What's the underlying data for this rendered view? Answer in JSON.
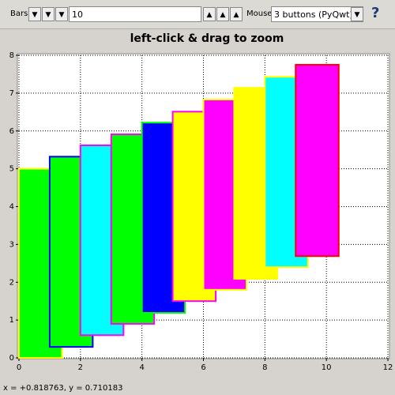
{
  "toolbar": {
    "bars_label": "Bars",
    "bars_value": "10",
    "mouse_label": "Mouse",
    "mouse_value": "3 buttons (PyQwt)",
    "help": "?"
  },
  "chart_data": {
    "type": "floating-bar",
    "title": "left-click & drag to zoom",
    "bars": [
      {
        "x0": 0,
        "x1": 1.4,
        "low": 0.0,
        "high": 5.0,
        "fill": "#00ff00",
        "edge": "#ffff00"
      },
      {
        "x0": 1,
        "x1": 2.4,
        "low": 0.29,
        "high": 5.32,
        "fill": "#00ff00",
        "edge": "#0000ff"
      },
      {
        "x0": 2,
        "x1": 3.4,
        "low": 0.6,
        "high": 5.62,
        "fill": "#00ffff",
        "edge": "#ff00ff"
      },
      {
        "x0": 3,
        "x1": 4.4,
        "low": 0.9,
        "high": 5.91,
        "fill": "#00ff00",
        "edge": "#ff00ff"
      },
      {
        "x0": 4,
        "x1": 5.4,
        "low": 1.19,
        "high": 6.22,
        "fill": "#0000ff",
        "edge": "#00ff00"
      },
      {
        "x0": 5,
        "x1": 6.4,
        "low": 1.5,
        "high": 6.51,
        "fill": "#ffff00",
        "edge": "#ff00ff"
      },
      {
        "x0": 6,
        "x1": 7.4,
        "low": 1.8,
        "high": 6.83,
        "fill": "#ff00ff",
        "edge": "#ffff00"
      },
      {
        "x0": 7,
        "x1": 8.4,
        "low": 2.09,
        "high": 7.14,
        "fill": "#ffff00",
        "edge": "#ffff00"
      },
      {
        "x0": 8,
        "x1": 9.4,
        "low": 2.4,
        "high": 7.43,
        "fill": "#00ffff",
        "edge": "#ffff00"
      },
      {
        "x0": 9,
        "x1": 10.4,
        "low": 2.69,
        "high": 7.75,
        "fill": "#ff00ff",
        "edge": "#ff0000"
      }
    ],
    "xlim": [
      0,
      12
    ],
    "xticks": [
      0,
      2,
      4,
      6,
      8,
      10,
      12
    ],
    "ylim": [
      0,
      8
    ],
    "yticks": [
      0,
      1,
      2,
      3,
      4,
      5,
      6,
      7,
      8
    ],
    "grid": true
  },
  "status": "x = +0.818763, y = 0.710183"
}
